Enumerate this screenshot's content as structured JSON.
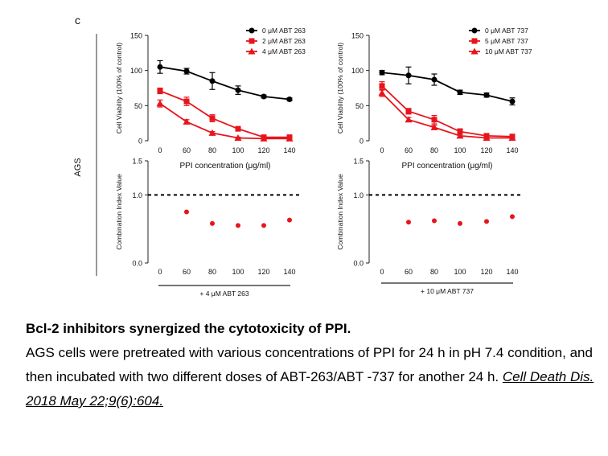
{
  "panel_label": "c",
  "row_label": "AGS",
  "chart_data": [
    {
      "type": "line",
      "id": "viability-abt263",
      "ylabel": "Cell Viability (100% of control)",
      "xlabel": "PPI concentration (μg/ml)",
      "x": [
        0,
        60,
        80,
        100,
        120,
        140
      ],
      "xticks": [
        "0",
        "60",
        "80",
        "100",
        "120",
        "140"
      ],
      "ylim": [
        0,
        150
      ],
      "yticks": [
        0,
        50,
        100,
        150
      ],
      "series": [
        {
          "name": "0 μM ABT 263",
          "color": "#000000",
          "marker": "circle",
          "values": [
            105,
            99,
            85,
            72,
            63,
            59
          ],
          "errors": [
            9,
            4,
            12,
            6,
            2,
            2
          ]
        },
        {
          "name": "2 μM ABT 263",
          "color": "#e8141c",
          "marker": "square",
          "values": [
            71,
            56,
            32,
            17,
            5,
            5
          ],
          "errors": [
            4,
            6,
            5,
            3,
            2,
            2
          ]
        },
        {
          "name": "4 μM ABT 263",
          "color": "#e8141c",
          "marker": "triangle",
          "values": [
            53,
            27,
            11,
            4,
            3,
            3
          ],
          "errors": [
            5,
            3,
            2,
            1,
            1,
            1
          ]
        }
      ]
    },
    {
      "type": "line",
      "id": "viability-abt737",
      "ylabel": "Cell Viability (100% of control)",
      "xlabel": "PPI concentration (μg/ml)",
      "x": [
        0,
        60,
        80,
        100,
        120,
        140
      ],
      "xticks": [
        "0",
        "60",
        "80",
        "100",
        "120",
        "140"
      ],
      "ylim": [
        0,
        150
      ],
      "yticks": [
        0,
        50,
        100,
        150
      ],
      "series": [
        {
          "name": "0 μM ABT 737",
          "color": "#000000",
          "marker": "circle",
          "values": [
            97,
            93,
            87,
            69,
            65,
            56
          ],
          "errors": [
            3,
            12,
            8,
            3,
            3,
            5
          ]
        },
        {
          "name": "5 μM ABT 737",
          "color": "#e8141c",
          "marker": "square",
          "values": [
            78,
            42,
            30,
            13,
            7,
            6
          ],
          "errors": [
            6,
            4,
            6,
            4,
            2,
            2
          ]
        },
        {
          "name": "10 μM ABT 737",
          "color": "#e8141c",
          "marker": "triangle",
          "values": [
            68,
            30,
            19,
            7,
            4,
            4
          ],
          "errors": [
            5,
            3,
            3,
            2,
            1,
            1
          ]
        }
      ]
    },
    {
      "type": "scatter",
      "id": "ci-abt263",
      "ylabel": "Combination Index Value",
      "x": [
        60,
        80,
        100,
        120,
        140
      ],
      "xticks": [
        "0",
        "60",
        "80",
        "100",
        "120",
        "140"
      ],
      "xtick_values": [
        0,
        60,
        80,
        100,
        120,
        140
      ],
      "ylim": [
        0,
        1.5
      ],
      "yticks": [
        "0.0",
        "1.0",
        "1.5"
      ],
      "ytick_values": [
        0,
        1.0,
        1.5
      ],
      "reference_line": 1.0,
      "color": "#e8141c",
      "values": [
        0.75,
        0.58,
        0.55,
        0.55,
        0.63
      ],
      "group_label": "+ 4 μM ABT 263"
    },
    {
      "type": "scatter",
      "id": "ci-abt737",
      "ylabel": "Combination Index Value",
      "x": [
        60,
        80,
        100,
        120,
        140
      ],
      "xticks": [
        "0",
        "60",
        "80",
        "100",
        "120",
        "140"
      ],
      "xtick_values": [
        0,
        60,
        80,
        100,
        120,
        140
      ],
      "ylim": [
        0,
        1.5
      ],
      "yticks": [
        "0.0",
        "1.0",
        "1.5"
      ],
      "ytick_values": [
        0,
        1.0,
        1.5
      ],
      "reference_line": 1.0,
      "color": "#e8141c",
      "values": [
        0.6,
        0.62,
        0.58,
        0.61,
        0.68
      ],
      "group_label": "+ 10 μM ABT 737"
    }
  ],
  "caption": {
    "title": "Bcl-2 inhibitors synergized the cytotoxicity of PPI.",
    "body": "AGS cells were pretreated with various concentrations of PPI for 24 h in pH 7.4 condition, and then incubated with two different doses of ABT-263/ABT -737 for another 24 h.",
    "citation": "Cell Death Dis. 2018 May 22;9(6):604."
  }
}
